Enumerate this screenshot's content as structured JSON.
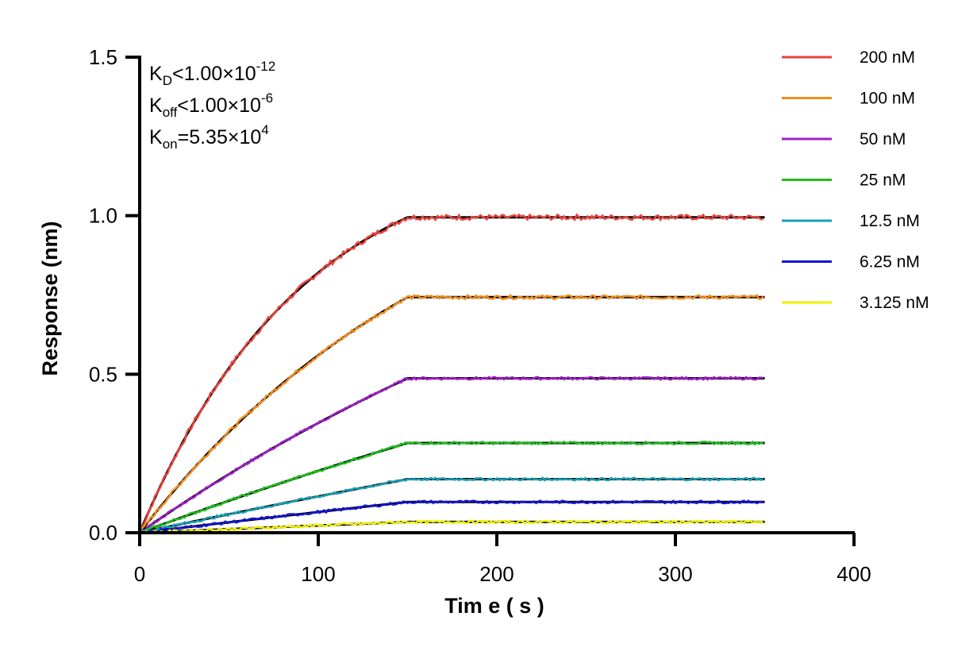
{
  "chart_data": {
    "type": "line",
    "xlabel": "Tim e ( s )",
    "ylabel": "Response (nm)",
    "xlim": [
      0,
      400
    ],
    "ylim": [
      0,
      1.5
    ],
    "x_ticks": [
      0,
      100,
      200,
      300,
      400
    ],
    "y_ticks": [
      0.0,
      0.5,
      1.0,
      1.5
    ],
    "x_tick_labels": [
      "0",
      "100",
      "200",
      "300",
      "400"
    ],
    "y_tick_labels": [
      "0.0",
      "0.5",
      "1.0",
      "1.5"
    ],
    "grid": false,
    "legend_position": "top-right",
    "association_end_time": 150,
    "end_time": 350,
    "fit_color": "#000000",
    "annotations": {
      "kd": {
        "main": "K",
        "sub": "D",
        "rel": "<1.00×10",
        "sup": "-12"
      },
      "koff": {
        "main": "K",
        "sub": "off",
        "rel": "<1.00×10",
        "sup": "-6"
      },
      "kon": {
        "main": "K",
        "sub": "on",
        "rel": "=5.35×10",
        "sup": "4"
      }
    },
    "series": [
      {
        "name": "200 nM",
        "color": "#e8423c",
        "plateau": 0.995,
        "curvature": 0.0109
      },
      {
        "name": "100 nM",
        "color": "#f28c1c",
        "plateau": 0.743,
        "curvature": 0.0055
      },
      {
        "name": "50 nM",
        "color": "#a020c8",
        "plateau": 0.487,
        "curvature": 0.0027
      },
      {
        "name": "25 nM",
        "color": "#1ebd1e",
        "plateau": 0.283,
        "curvature": 0.0014
      },
      {
        "name": "12.5 nM",
        "color": "#1a9fb4",
        "plateau": 0.169,
        "curvature": 0.0007
      },
      {
        "name": "6.25 nM",
        "color": "#1414d2",
        "plateau": 0.097,
        "curvature": 0.0004
      },
      {
        "name": "3.125 nM",
        "color": "#f0f000",
        "plateau": 0.034,
        "curvature": 0.0002
      }
    ]
  }
}
